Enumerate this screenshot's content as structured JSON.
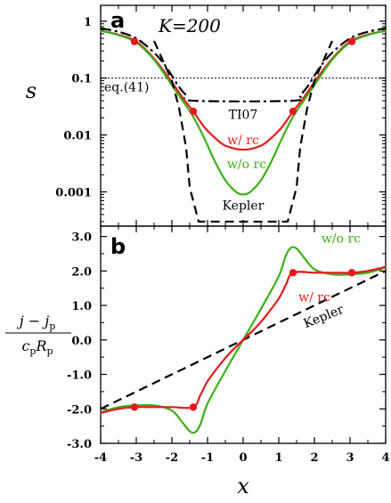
{
  "chart_data": [
    {
      "panel": "a",
      "type": "line",
      "title": "K=200",
      "ylabel": "s",
      "xlim": [
        -4,
        4
      ],
      "ylim": [
        0.00025,
        1.9
      ],
      "yscale": "log",
      "y_ticks": [
        {
          "value": 1,
          "label": "1"
        },
        {
          "value": 0.1,
          "label": "0.1"
        },
        {
          "value": 0.01,
          "label": "0.01"
        },
        {
          "value": 0.001,
          "label": "0.001"
        }
      ],
      "x_ticks": [
        -4,
        -3,
        -2,
        -1,
        0,
        1,
        2,
        3,
        4
      ],
      "reference_line": {
        "y": 0.1,
        "label": "eq.(41)"
      },
      "series": [
        {
          "name": "TI07",
          "color": "#000000",
          "style": "dashdot",
          "x": [
            -4.0,
            -3.5,
            -3.0,
            -2.5,
            -2.2,
            -2.0,
            -1.8,
            -1.6,
            -1.4,
            1.4,
            1.6,
            1.8,
            2.0,
            2.2,
            2.5,
            3.0,
            3.5,
            4.0
          ],
          "y": [
            0.75,
            0.65,
            0.5,
            0.28,
            0.17,
            0.11,
            0.07,
            0.05,
            0.04,
            0.04,
            0.05,
            0.07,
            0.11,
            0.17,
            0.28,
            0.5,
            0.65,
            0.75
          ]
        },
        {
          "name": "w/ rc",
          "color": "#e41a1c",
          "style": "solid",
          "x": [
            -4.0,
            -3.5,
            -3.0,
            -2.5,
            -2.0,
            -1.7,
            -1.4,
            -1.1,
            -0.8,
            -0.5,
            0.0,
            0.5,
            0.8,
            1.1,
            1.4,
            1.7,
            2.0,
            2.5,
            3.0,
            3.5,
            4.0
          ],
          "y": [
            0.68,
            0.58,
            0.44,
            0.22,
            0.085,
            0.045,
            0.026,
            0.014,
            0.009,
            0.0065,
            0.0055,
            0.0065,
            0.009,
            0.014,
            0.026,
            0.045,
            0.085,
            0.22,
            0.44,
            0.58,
            0.68
          ]
        },
        {
          "name": "w/o rc",
          "color": "#3cb019",
          "style": "solid",
          "x": [
            -4.0,
            -3.5,
            -3.0,
            -2.5,
            -2.0,
            -1.7,
            -1.4,
            -1.1,
            -0.8,
            -0.5,
            -0.2,
            0.0,
            0.2,
            0.5,
            0.8,
            1.1,
            1.4,
            1.7,
            2.0,
            2.5,
            3.0,
            3.5,
            4.0
          ],
          "y": [
            0.68,
            0.57,
            0.42,
            0.21,
            0.075,
            0.04,
            0.021,
            0.009,
            0.0035,
            0.0016,
            0.001,
            0.0009,
            0.001,
            0.0016,
            0.0035,
            0.009,
            0.021,
            0.04,
            0.075,
            0.21,
            0.42,
            0.57,
            0.68
          ]
        },
        {
          "name": "Kepler",
          "color": "#000000",
          "style": "dashed",
          "x": [
            -2.5,
            -2.0,
            -1.8,
            -1.6,
            -1.5,
            -1.25,
            1.25,
            1.5,
            1.6,
            1.8,
            2.0,
            2.5
          ],
          "y": [
            0.45,
            0.09,
            0.03,
            0.006,
            0.0012,
            0.0003,
            0.0003,
            0.0012,
            0.006,
            0.03,
            0.09,
            0.45
          ]
        }
      ],
      "markers": {
        "color": "#e41a1c",
        "x": [
          -3.05,
          -1.4,
          1.4,
          3.05
        ],
        "y": [
          0.44,
          0.026,
          0.026,
          0.44
        ]
      },
      "annotations": [
        {
          "text": "TI07",
          "x": 0.0,
          "y": 0.023,
          "color": "#000000"
        },
        {
          "text": "w/ rc",
          "x": 0.0,
          "y": 0.0082,
          "color": "#e41a1c"
        },
        {
          "text": "w/o rc",
          "x": 0.1,
          "y": 0.0031,
          "color": "#3cb019"
        },
        {
          "text": "Kepler",
          "x": 0.0,
          "y": 0.00058,
          "color": "#000000"
        }
      ]
    },
    {
      "panel": "b",
      "type": "line",
      "xlabel": "x",
      "ylabel_numerator": "j − j",
      "ylabel_numerator_sub": "p",
      "ylabel_denominator": "c",
      "ylabel_denominator_sub1": "p",
      "ylabel_denominator_mid": "R",
      "ylabel_denominator_sub2": "p",
      "xlim": [
        -4,
        4
      ],
      "ylim": [
        -3.0,
        3.3
      ],
      "x_ticks": [
        -4,
        -3,
        -2,
        -1,
        0,
        1,
        2,
        3,
        4
      ],
      "y_ticks": [
        {
          "value": 3.0,
          "label": "3.0"
        },
        {
          "value": 2.0,
          "label": "2.0"
        },
        {
          "value": 1.0,
          "label": "1.0"
        },
        {
          "value": 0.0,
          "label": "0.0"
        },
        {
          "value": -1.0,
          "label": "-1.0"
        },
        {
          "value": -2.0,
          "label": "-2.0"
        },
        {
          "value": -3.0,
          "label": "-3.0"
        }
      ],
      "series": [
        {
          "name": "Kepler",
          "color": "#000000",
          "style": "dashed",
          "x": [
            -4.0,
            4.0
          ],
          "y": [
            -2.0,
            2.0
          ]
        },
        {
          "name": "w/o rc",
          "color": "#3cb019",
          "style": "solid",
          "x": [
            -4.0,
            -3.5,
            -3.0,
            -2.5,
            -2.0,
            -1.7,
            -1.5,
            -1.35,
            -1.2,
            -1.0,
            -0.5,
            0.0,
            0.5,
            1.0,
            1.2,
            1.35,
            1.5,
            1.7,
            2.0,
            2.5,
            3.0,
            3.5,
            4.0
          ],
          "y": [
            -2.1,
            -1.95,
            -1.9,
            -1.9,
            -2.05,
            -2.4,
            -2.65,
            -2.68,
            -2.45,
            -1.85,
            -0.9,
            0.0,
            0.9,
            1.85,
            2.45,
            2.68,
            2.65,
            2.4,
            2.05,
            1.9,
            1.9,
            1.95,
            2.1
          ]
        },
        {
          "name": "w/ rc",
          "color": "#e41a1c",
          "style": "solid",
          "x": [
            -4.0,
            -3.5,
            -3.05,
            -2.5,
            -2.0,
            -1.4,
            -1.2,
            -1.0,
            -0.6,
            -0.3,
            0.0,
            0.3,
            0.6,
            1.0,
            1.2,
            1.4,
            2.0,
            2.5,
            3.05,
            3.5,
            4.0
          ],
          "y": [
            -2.12,
            -2.0,
            -1.95,
            -1.95,
            -1.95,
            -1.95,
            -1.6,
            -1.2,
            -0.65,
            -0.3,
            0.0,
            0.3,
            0.65,
            1.2,
            1.6,
            1.95,
            1.95,
            1.95,
            1.95,
            2.0,
            2.12
          ]
        }
      ],
      "markers": {
        "color": "#e41a1c",
        "x": [
          -3.05,
          -1.4,
          1.4,
          3.05
        ],
        "y": [
          -1.95,
          -1.95,
          1.95,
          1.95
        ]
      },
      "annotations": [
        {
          "text": "w/o rc",
          "x": 2.75,
          "y": 2.95,
          "color": "#3cb019"
        },
        {
          "text": "w/ rc",
          "x": 2.0,
          "y": 1.25,
          "color": "#e41a1c"
        },
        {
          "text": "Kepler",
          "x": 2.3,
          "y": 0.7,
          "color": "#000000"
        }
      ]
    }
  ]
}
